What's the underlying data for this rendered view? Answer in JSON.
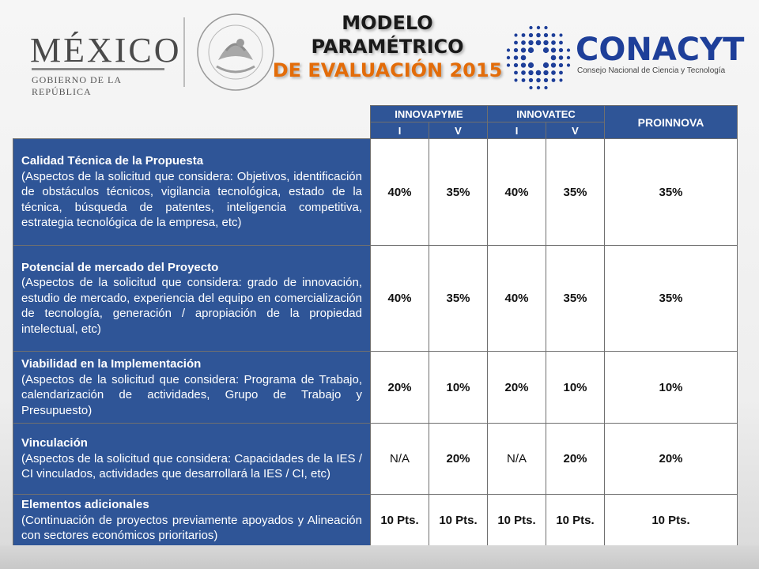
{
  "header": {
    "mexico_word": "MÉXICO",
    "mexico_sub": "GOBIERNO DE LA REPÚBLICA",
    "seal_text": "ESTADOS UNIDOS MEXICANOS",
    "title_line1": "MODELO",
    "title_line2": "PARAMÉTRICO",
    "title_line3": "DE EVALUACIÓN 2015",
    "conacyt_name": "CONACYT",
    "conacyt_sub": "Consejo Nacional de Ciencia y Tecnología"
  },
  "colors": {
    "header_blue": "#2f5597",
    "title_orange": "#e36c09",
    "conacyt_blue": "#1e3f99"
  },
  "table": {
    "groups": [
      "INNOVAPYME",
      "INNOVATEC",
      "PROINNOVA"
    ],
    "subcols": [
      "I",
      "V",
      "I",
      "V"
    ],
    "rows": [
      {
        "title": "Calidad Técnica de la Propuesta",
        "desc": "(Aspectos de la solicitud que considera: Objetivos, identificación de obstáculos técnicos, vigilancia tecnológica, estado de la técnica, búsqueda de patentes, inteligencia competitiva, estrategia tecnológica de la empresa, etc)",
        "values": [
          "40%",
          "35%",
          "40%",
          "35%",
          "35%"
        ]
      },
      {
        "title": "Potencial de mercado del Proyecto",
        "desc": "(Aspectos de la solicitud que considera: grado de innovación, estudio de mercado, experiencia del equipo en comercialización de tecnología, generación / apropiación de la propiedad intelectual, etc)",
        "values": [
          "40%",
          "35%",
          "40%",
          "35%",
          "35%"
        ]
      },
      {
        "title": "Viabilidad en la Implementación",
        "desc": "(Aspectos de la solicitud que considera: Programa de Trabajo, calendarización de actividades, Grupo de Trabajo y Presupuesto)",
        "values": [
          "20%",
          "10%",
          "20%",
          "10%",
          "10%"
        ]
      },
      {
        "title": "Vinculación",
        "desc": "(Aspectos de la solicitud que considera: Capacidades de la IES / CI vinculados, actividades que desarrollará la IES / CI, etc)",
        "values": [
          "N/A",
          "20%",
          "N/A",
          "20%",
          "20%"
        ]
      },
      {
        "title": "Elementos adicionales",
        "desc": "(Continuación de proyectos previamente apoyados y Alineación con sectores económicos prioritarios)",
        "values": [
          "10 Pts.",
          "10 Pts.",
          "10 Pts.",
          "10 Pts.",
          "10 Pts."
        ]
      }
    ]
  }
}
